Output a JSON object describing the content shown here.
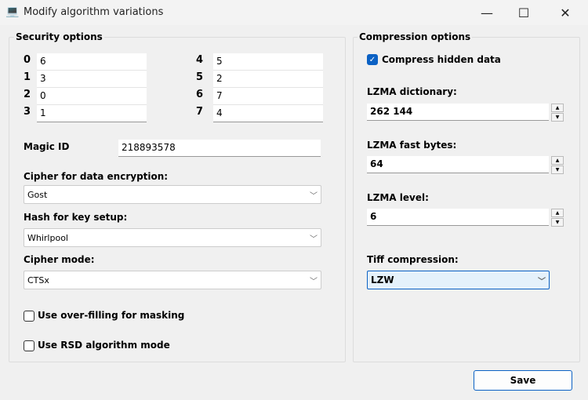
{
  "window": {
    "title": "Modify algorithm variations",
    "icon": "computer-icon",
    "minimize": "—",
    "maximize": "☐",
    "close": "✕"
  },
  "security": {
    "title": "Security options",
    "slots": [
      {
        "index": "0",
        "value": "6"
      },
      {
        "index": "1",
        "value": "3"
      },
      {
        "index": "2",
        "value": "0"
      },
      {
        "index": "3",
        "value": "1"
      },
      {
        "index": "4",
        "value": "5"
      },
      {
        "index": "5",
        "value": "2"
      },
      {
        "index": "6",
        "value": "7"
      },
      {
        "index": "7",
        "value": "4"
      }
    ],
    "magic_id_label": "Magic ID",
    "magic_id": "218893578",
    "cipher_label": "Cipher for data encryption:",
    "cipher": "Gost",
    "hash_label": "Hash for key setup:",
    "hash": "Whirlpool",
    "mode_label": "Cipher mode:",
    "mode": "CTSx",
    "overfill_label": "Use over-filling for masking",
    "overfill_checked": false,
    "rsd_label": "Use RSD algorithm mode",
    "rsd_checked": false
  },
  "compression": {
    "title": "Compression options",
    "compress_label": "Compress hidden data",
    "compress_checked": true,
    "dict_label": "LZMA dictionary:",
    "dict": "262 144",
    "fast_label": "LZMA fast bytes:",
    "fast": "64",
    "level_label": "LZMA level:",
    "level": "6",
    "tiff_label": "Tiff compression:",
    "tiff": "LZW"
  },
  "save_label": "Save",
  "accent": "#0b61c4"
}
